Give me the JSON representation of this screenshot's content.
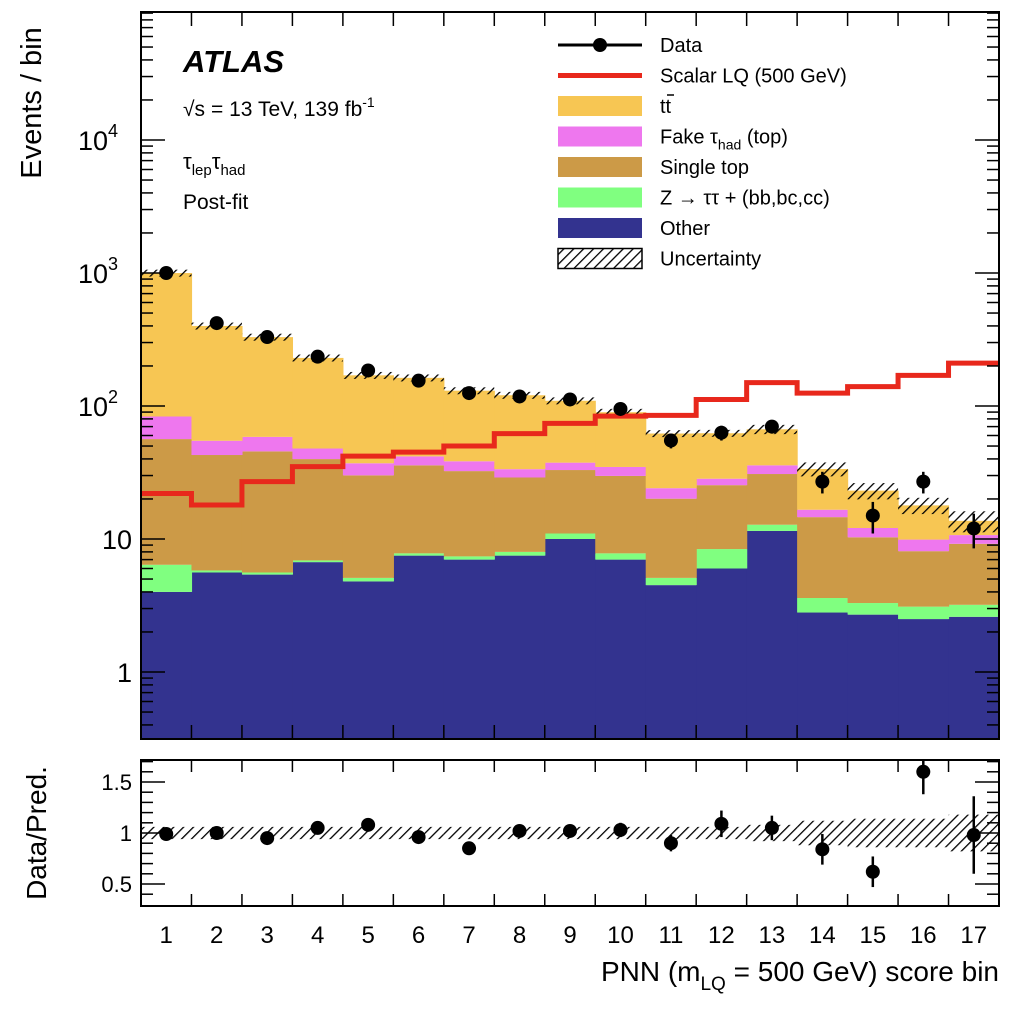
{
  "chart_data": {
    "type": "stacked_histogram_with_ratio",
    "experiment": "ATLAS",
    "energy_label": "= 13 TeV, 139 fb",
    "energy_sup": "-1",
    "sqrt_s": "√s",
    "channel_tau1": "τ",
    "channel_sub1": "lep",
    "channel_tau2": "τ",
    "channel_sub2": "had",
    "fit_label": "Post-fit",
    "ylabel": "Events / bin",
    "ratio_ylabel": "Data/Pred.",
    "xlabel_prefix": "PNN (m",
    "xlabel_sub": "LQ",
    "xlabel_suffix": " = 500 GeV) score bin",
    "yscale": "log",
    "ylim": [
      0.3,
      100000
    ],
    "ratio_ylim": [
      0.3,
      1.75
    ],
    "categories": [
      "1",
      "2",
      "3",
      "4",
      "5",
      "6",
      "7",
      "8",
      "9",
      "10",
      "11",
      "12",
      "13",
      "14",
      "15",
      "16",
      "17"
    ],
    "y_tick_labels": [
      {
        "value": 1,
        "label": "1"
      },
      {
        "value": 10,
        "label": "10"
      },
      {
        "value": 100,
        "label": "10",
        "exp": "2"
      },
      {
        "value": 1000,
        "label": "10",
        "exp": "3"
      },
      {
        "value": 10000,
        "label": "10",
        "exp": "4"
      }
    ],
    "ratio_tick_labels": [
      {
        "value": 0.5,
        "label": "0.5"
      },
      {
        "value": 1.0,
        "label": "1"
      },
      {
        "value": 1.5,
        "label": "1.5"
      }
    ],
    "stack_order": [
      "Other",
      "Z",
      "Single top",
      "Fake",
      "ttbar"
    ],
    "series": [
      {
        "key": "Other",
        "name": "Other",
        "color": "#33338f",
        "values": [
          4.0,
          5.6,
          5.4,
          6.7,
          4.8,
          7.5,
          7.0,
          7.5,
          10.0,
          7.0,
          4.5,
          6.0,
          11.5,
          2.8,
          2.7,
          2.5,
          2.6
        ]
      },
      {
        "key": "Z",
        "name": "Z → ττ + (bb,bc,cc)",
        "color": "#80ff80",
        "values": [
          2.4,
          0.2,
          0.2,
          0.2,
          0.3,
          0.3,
          0.4,
          0.5,
          1.0,
          0.8,
          0.6,
          2.4,
          1.3,
          0.8,
          0.6,
          0.6,
          0.6
        ]
      },
      {
        "key": "Single top",
        "name": "Single top",
        "color": "#cc9a47",
        "values": [
          50.0,
          37.0,
          40.0,
          33.0,
          25.0,
          28.0,
          25.0,
          21.0,
          22.0,
          22.0,
          15.0,
          17.0,
          18.0,
          11.0,
          7.0,
          5.0,
          6.0
        ]
      },
      {
        "key": "Fake",
        "name": "Fake τhad (top)",
        "color": "#ee77ee",
        "values": [
          27.0,
          12.0,
          13.0,
          8.0,
          7.0,
          6.0,
          6.0,
          4.5,
          4.5,
          5.0,
          4.0,
          3.0,
          5.0,
          2.0,
          1.8,
          1.8,
          1.5
        ]
      },
      {
        "key": "ttbar",
        "name": "tt̄",
        "color": "#f7c653",
        "values": [
          916.0,
          345.0,
          271.0,
          182.0,
          133.0,
          121.0,
          92.0,
          87.0,
          72.0,
          55.0,
          38.0,
          34.0,
          31.0,
          17.0,
          11.0,
          8.0,
          3.0
        ]
      }
    ],
    "signal": {
      "name": "Scalar LQ (500 GeV)",
      "color": "#e8281c",
      "values": [
        22.0,
        18.0,
        27.0,
        35.0,
        42.0,
        45.0,
        50.0,
        62.0,
        74.0,
        84.0,
        85.0,
        112.0,
        150.0,
        125.0,
        140.0,
        170.0,
        210.0
      ]
    },
    "data": {
      "name": "Data",
      "color": "#000000",
      "values": [
        1000,
        420,
        330,
        235,
        185,
        155,
        125,
        118,
        112,
        95,
        55,
        63,
        70,
        27,
        15,
        27,
        12
      ],
      "errors": [
        32,
        20,
        18,
        15,
        14,
        12,
        11,
        11,
        11,
        10,
        7,
        8,
        8,
        5,
        4,
        5,
        3.5
      ]
    },
    "uncertainty": {
      "name": "Uncertainty",
      "rel": [
        0.06,
        0.06,
        0.06,
        0.06,
        0.06,
        0.06,
        0.06,
        0.06,
        0.06,
        0.06,
        0.06,
        0.06,
        0.08,
        0.12,
        0.14,
        0.14,
        0.18
      ]
    },
    "ratio": {
      "values": [
        0.99,
        1.0,
        0.95,
        1.05,
        1.08,
        0.96,
        0.85,
        1.02,
        1.02,
        1.03,
        0.9,
        1.09,
        1.05,
        0.84,
        0.62,
        1.6,
        0.98
      ],
      "errors": [
        0.03,
        0.03,
        0.03,
        0.04,
        0.05,
        0.05,
        0.05,
        0.06,
        0.06,
        0.07,
        0.08,
        0.13,
        0.12,
        0.15,
        0.15,
        0.22,
        0.38
      ]
    },
    "legend_position": "top-right",
    "legend": [
      {
        "key": "Data",
        "label": "Data"
      },
      {
        "key": "signal",
        "label": "Scalar LQ (500 GeV)"
      },
      {
        "key": "ttbar",
        "label": "tt"
      },
      {
        "key": "Fake",
        "label": "Fake τ",
        "sub": "had",
        "suffix": " (top)"
      },
      {
        "key": "Single top",
        "label": "Single top"
      },
      {
        "key": "Z",
        "label": "Z → ττ + (bb,bc,cc)"
      },
      {
        "key": "Other",
        "label": "Other"
      },
      {
        "key": "uncertainty",
        "label": "Uncertainty"
      }
    ]
  }
}
